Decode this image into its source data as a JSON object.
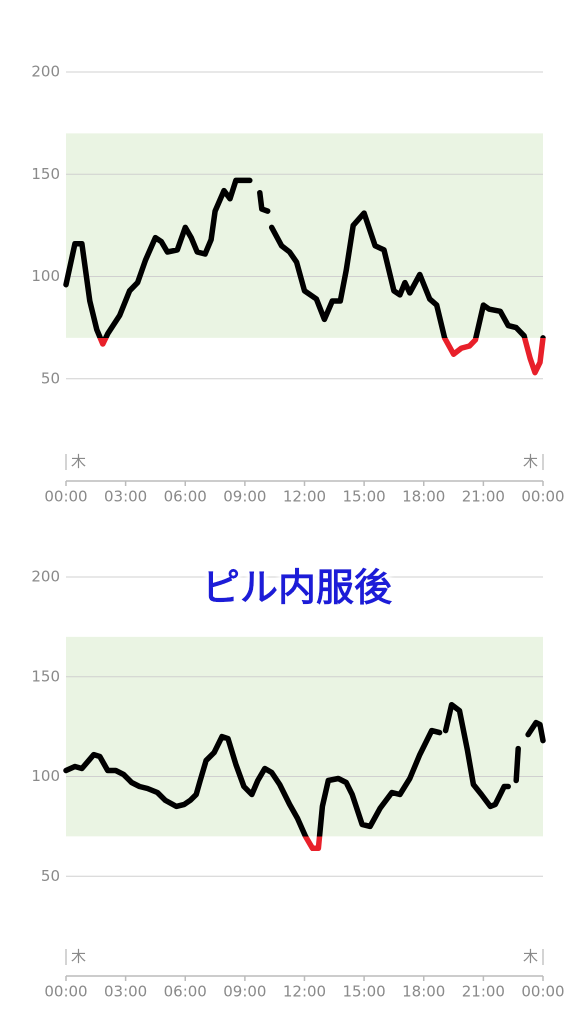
{
  "chart_data": [
    {
      "type": "line",
      "x": [
        0,
        0.45,
        0.8,
        1.2,
        1.55,
        1.85,
        2.1,
        2.7,
        3.2,
        3.6,
        4.0,
        4.5,
        4.8,
        5.1,
        5.6,
        6.0,
        6.3,
        6.6,
        7.0,
        7.3,
        7.5,
        7.95,
        8.25,
        8.55,
        8.85,
        9.25,
        9.5,
        9.75,
        9.85,
        10.15,
        10.25,
        10.35,
        10.85,
        11.25,
        11.6,
        12.0,
        12.6,
        13.0,
        13.4,
        13.8,
        14.1,
        14.45,
        15.0,
        15.55,
        16.0,
        16.5,
        16.8,
        17.05,
        17.3,
        17.8,
        18.3,
        18.65,
        19.05,
        19.5,
        19.9,
        20.3,
        20.6,
        21.0,
        21.3,
        21.85,
        22.25,
        22.65,
        23.05,
        23.35,
        23.6,
        23.85,
        24
      ],
      "values": [
        96,
        116,
        116,
        88,
        74,
        67,
        72,
        81,
        93,
        97,
        108,
        119,
        117,
        112,
        113,
        124,
        119,
        112,
        111,
        118,
        132,
        142,
        138,
        147,
        147,
        147,
        null,
        141,
        133,
        132,
        null,
        124,
        115,
        112,
        107,
        93,
        89,
        79,
        88,
        88,
        103,
        125,
        131,
        115,
        113,
        93,
        91,
        97,
        92,
        101,
        89,
        86,
        70,
        62,
        65,
        66,
        69,
        86,
        84,
        83,
        76,
        75,
        71,
        60,
        53,
        58,
        70
      ],
      "color": "#000000",
      "low_color": "#e8202a",
      "target_range": [
        70,
        170
      ],
      "band_color": "#eaf4e3",
      "xlim": [
        0,
        24
      ],
      "xticks": [
        {
          "value": 0,
          "label": "00:00"
        },
        {
          "value": 3,
          "label": "03:00"
        },
        {
          "value": 6,
          "label": "06:00"
        },
        {
          "value": 9,
          "label": "09:00"
        },
        {
          "value": 12,
          "label": "12:00"
        },
        {
          "value": 15,
          "label": "15:00"
        },
        {
          "value": 18,
          "label": "18:00"
        },
        {
          "value": 21,
          "label": "21:00"
        },
        {
          "value": 24,
          "label": "00:00"
        }
      ],
      "day_markers": [
        {
          "value": 0,
          "label": "木"
        },
        {
          "value": 24,
          "label": "木"
        }
      ],
      "ylim": [
        0,
        200
      ],
      "yticks": [
        50,
        100,
        150,
        200
      ],
      "grid": true
    },
    {
      "type": "line",
      "title": "ピル内服後",
      "x": [
        0,
        0.45,
        0.8,
        1.4,
        1.7,
        2.1,
        2.5,
        2.9,
        3.3,
        3.7,
        4.1,
        4.6,
        5.0,
        5.55,
        5.95,
        6.25,
        6.55,
        6.75,
        7.05,
        7.45,
        7.85,
        8.15,
        8.55,
        8.95,
        9.35,
        9.65,
        10.0,
        10.35,
        10.75,
        11.25,
        11.65,
        12.05,
        12.4,
        12.7,
        12.9,
        13.2,
        13.7,
        14.1,
        14.4,
        14.9,
        15.3,
        15.8,
        16.4,
        16.8,
        17.3,
        17.8,
        18.4,
        18.8,
        18.95,
        19.1,
        19.4,
        19.8,
        20.2,
        20.5,
        20.9,
        21.35,
        21.6,
        22.05,
        22.25,
        22.45,
        22.65,
        22.75,
        23.0,
        23.25,
        23.65,
        23.85,
        24
      ],
      "values": [
        103,
        105,
        104,
        111,
        110,
        103,
        103,
        101,
        97,
        95,
        94,
        92,
        88,
        85,
        86,
        88,
        91,
        98,
        108,
        112,
        120,
        119,
        106,
        95,
        91,
        98,
        104,
        102,
        96,
        86,
        79,
        70,
        64,
        64,
        85,
        98,
        99,
        97,
        91,
        76,
        75,
        84,
        92,
        91,
        99,
        111,
        123,
        122,
        null,
        123,
        136,
        133,
        113,
        96,
        91,
        85,
        86,
        95,
        95,
        null,
        98,
        114,
        null,
        121,
        127,
        126,
        118
      ],
      "color": "#000000",
      "low_color": "#e8202a",
      "target_range": [
        70,
        170
      ],
      "band_color": "#eaf4e3",
      "xlim": [
        0,
        24
      ],
      "xticks": [
        {
          "value": 0,
          "label": "00:00"
        },
        {
          "value": 3,
          "label": "03:00"
        },
        {
          "value": 6,
          "label": "06:00"
        },
        {
          "value": 9,
          "label": "09:00"
        },
        {
          "value": 12,
          "label": "12:00"
        },
        {
          "value": 15,
          "label": "15:00"
        },
        {
          "value": 18,
          "label": "18:00"
        },
        {
          "value": 21,
          "label": "21:00"
        },
        {
          "value": 24,
          "label": "00:00"
        }
      ],
      "day_markers": [
        {
          "value": 0,
          "label": "木"
        },
        {
          "value": 24,
          "label": "木"
        }
      ],
      "ylim": [
        0,
        200
      ],
      "yticks": [
        50,
        100,
        150,
        200
      ],
      "grid": true
    }
  ]
}
